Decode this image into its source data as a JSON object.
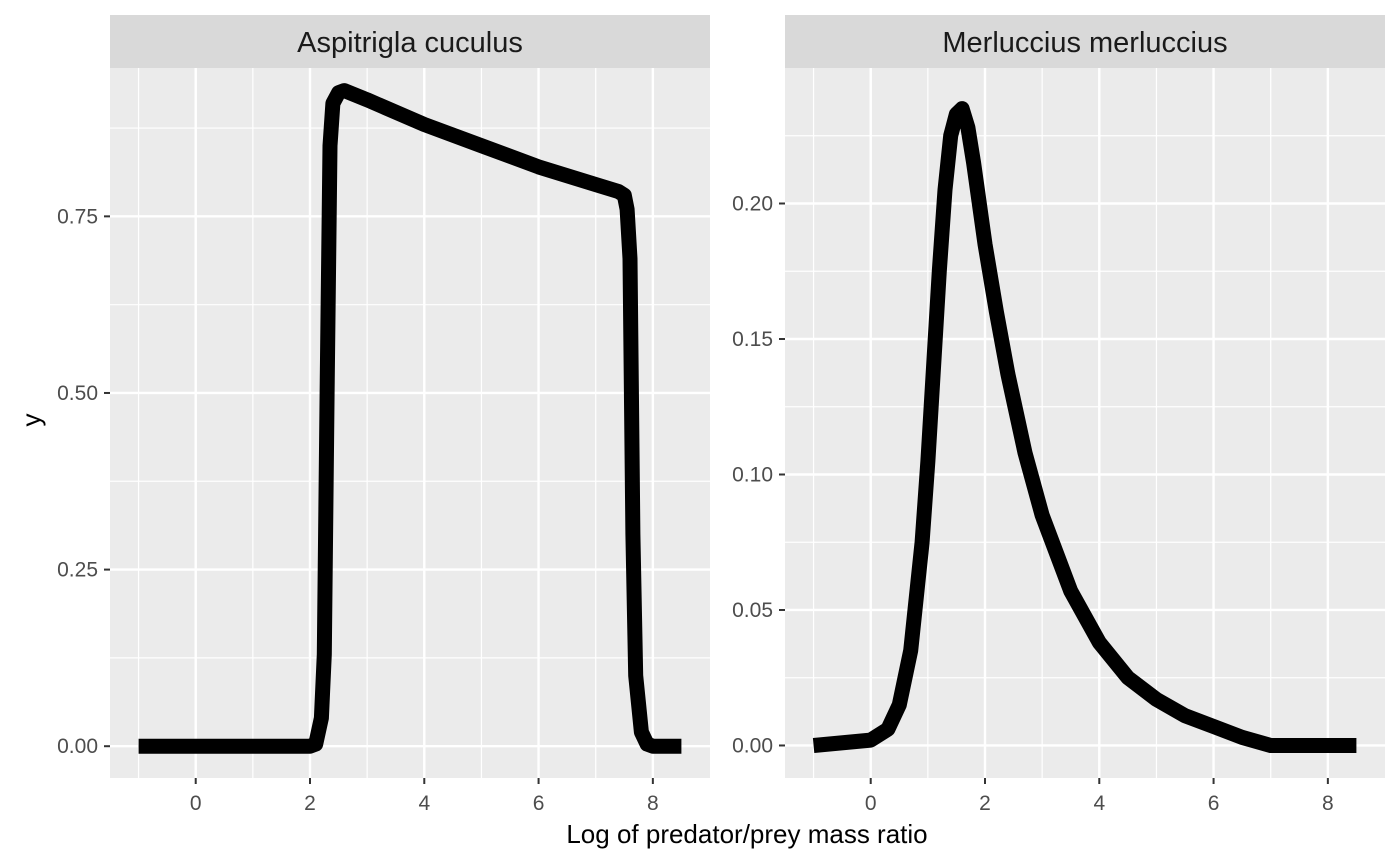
{
  "figure": {
    "xlabel": "Log of predator/prey mass ratio",
    "ylabel": "y"
  },
  "colors": {
    "panel_background": "#ebebeb",
    "strip_background": "#d9d9d9",
    "grid": "#ffffff",
    "line": "#000000"
  },
  "chart_data": [
    {
      "type": "line",
      "title": "Aspitrigla cuculus",
      "xlabel": "Log of predator/prey mass ratio",
      "ylabel": "y",
      "xlim": [
        -1.5,
        9.0
      ],
      "ylim": [
        -0.045,
        0.96
      ],
      "x_ticks": [
        0,
        2,
        4,
        6,
        8
      ],
      "x_tick_labels": [
        "0",
        "2",
        "4",
        "6",
        "8"
      ],
      "y_ticks": [
        0,
        0.25,
        0.5,
        0.75
      ],
      "y_tick_labels": [
        "0.00",
        "0.25",
        "0.50",
        "0.75"
      ],
      "grid": true,
      "series": [
        {
          "x": [
            -1.0,
            2.0,
            2.1,
            2.2,
            2.25,
            2.3,
            2.35,
            2.4,
            2.5,
            2.6,
            3.0,
            4.0,
            5.0,
            6.0,
            7.0,
            7.4,
            7.5,
            7.55,
            7.6,
            7.65,
            7.7,
            7.8,
            7.9,
            8.0,
            8.5
          ],
          "y": [
            0.0,
            0.0,
            0.003,
            0.04,
            0.13,
            0.5,
            0.85,
            0.91,
            0.925,
            0.928,
            0.915,
            0.88,
            0.85,
            0.82,
            0.795,
            0.785,
            0.78,
            0.76,
            0.69,
            0.3,
            0.1,
            0.02,
            0.003,
            0.0,
            0.0
          ]
        }
      ]
    },
    {
      "type": "line",
      "title": "Merluccius merluccius",
      "xlabel": "Log of predator/prey mass ratio",
      "ylabel": "y",
      "xlim": [
        -1.5,
        9.0
      ],
      "ylim": [
        -0.012,
        0.25
      ],
      "x_ticks": [
        0,
        2,
        4,
        6,
        8
      ],
      "x_tick_labels": [
        "0",
        "2",
        "4",
        "6",
        "8"
      ],
      "y_ticks": [
        0,
        0.05,
        0.1,
        0.15,
        0.2
      ],
      "y_tick_labels": [
        "0.00",
        "0.05",
        "0.10",
        "0.15",
        "0.20"
      ],
      "grid": true,
      "series": [
        {
          "x": [
            -1.0,
            0.0,
            0.3,
            0.5,
            0.7,
            0.9,
            1.0,
            1.1,
            1.2,
            1.3,
            1.4,
            1.5,
            1.6,
            1.7,
            1.8,
            2.0,
            2.2,
            2.4,
            2.7,
            3.0,
            3.5,
            4.0,
            4.5,
            5.0,
            5.5,
            6.0,
            6.5,
            7.0,
            7.5,
            8.5
          ],
          "y": [
            0.0,
            0.002,
            0.006,
            0.015,
            0.035,
            0.075,
            0.105,
            0.14,
            0.175,
            0.205,
            0.225,
            0.233,
            0.235,
            0.228,
            0.215,
            0.185,
            0.16,
            0.137,
            0.108,
            0.085,
            0.057,
            0.038,
            0.025,
            0.017,
            0.011,
            0.007,
            0.003,
            0.0,
            0.0,
            0.0
          ]
        }
      ]
    }
  ]
}
